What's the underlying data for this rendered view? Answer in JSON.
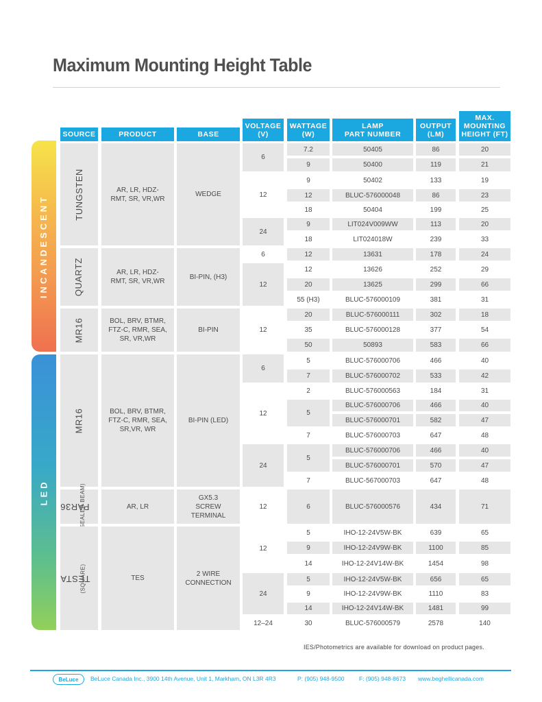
{
  "title": "Maximum Mounting Height Table",
  "headers": {
    "source": "SOURCE",
    "product": "PRODUCT",
    "base": "BASE",
    "voltage": [
      "VOLTAGE",
      "(V)"
    ],
    "wattage": [
      "WATTAGE",
      "(W)"
    ],
    "lamp": [
      "LAMP",
      "PART NUMBER"
    ],
    "output": [
      "OUTPUT",
      "(LM)"
    ],
    "height": [
      "MAX.",
      "MOUNTING",
      "HEIGHT (FT)"
    ]
  },
  "categories": {
    "incandescent": "INCANDESCENT",
    "led": "LED"
  },
  "sources": {
    "tungsten": "TUNGSTEN",
    "quartz": "QUARTZ",
    "mr16_inc": "MR16",
    "mr16_led": "MR16",
    "par36": "PAR36",
    "par36_sub": "(SEALED BEAM)",
    "testa": "TESTA",
    "testa_sub": "(SQUARE)"
  },
  "products": {
    "tungsten": "AR, LR, HDZ-RMT, SR, VR,WR",
    "quartz": "AR, LR, HDZ-RMT, SR, VR,WR",
    "mr16_inc": "BOL, BRV, BTMR, FTZ-C, RMR, SEA, SR, VR,WR",
    "mr16_led": "BOL, BRV, BTMR, FTZ-C, RMR, SEA, SR,VR, WR",
    "par36": "AR, LR",
    "testa": "TES"
  },
  "bases": {
    "tungsten": "WEDGE",
    "quartz": "BI-PIN, (H3)",
    "mr16_inc": "BI-PIN",
    "mr16_led": "BI-PIN (LED)",
    "par36": "GX5.3 SCREW TERMINAL",
    "testa": "2 WIRE CONNECTION"
  },
  "voltages": {
    "t6": "6",
    "t12": "12",
    "t24": "24",
    "q6": "6",
    "q12": "12",
    "mi12": "12",
    "ml6": "6",
    "ml12": "12",
    "ml24": "24",
    "p12": "12",
    "te12": "12",
    "te24": "24",
    "te1224": "12–24"
  },
  "wattages": {
    "ml12_5": "5",
    "ml12_7": "7",
    "ml24_5": "5",
    "ml24_7": "7",
    "par": "6"
  },
  "rows": [
    {
      "w": "7.2",
      "part": "50405",
      "lm": "86",
      "h": "20"
    },
    {
      "w": "9",
      "part": "50400",
      "lm": "119",
      "h": "21"
    },
    {
      "w": "9",
      "part": "50402",
      "lm": "133",
      "h": "19"
    },
    {
      "w": "12",
      "part": "BLUC-576000048",
      "lm": "86",
      "h": "23"
    },
    {
      "w": "18",
      "part": "50404",
      "lm": "199",
      "h": "25"
    },
    {
      "w": "9",
      "part": "LIT024V009WW",
      "lm": "113",
      "h": "20"
    },
    {
      "w": "18",
      "part": "LIT024018W",
      "lm": "239",
      "h": "33"
    },
    {
      "w": "12",
      "part": "13631",
      "lm": "178",
      "h": "24"
    },
    {
      "w": "12",
      "part": "13626",
      "lm": "252",
      "h": "29"
    },
    {
      "w": "20",
      "part": "13625",
      "lm": "299",
      "h": "66"
    },
    {
      "w": "55 (H3)",
      "part": "BLUC-576000109",
      "lm": "381",
      "h": "31"
    },
    {
      "w": "20",
      "part": "BLUC-576000111",
      "lm": "302",
      "h": "18"
    },
    {
      "w": "35",
      "part": "BLUC-576000128",
      "lm": "377",
      "h": "54"
    },
    {
      "w": "50",
      "part": "50893",
      "lm": "583",
      "h": "66"
    },
    {
      "w": "5",
      "part": "BLUC-576000706",
      "lm": "466",
      "h": "40"
    },
    {
      "w": "7",
      "part": "BLUC-576000702",
      "lm": "533",
      "h": "42"
    },
    {
      "w": "2",
      "part": "BLUC-576000563",
      "lm": "184",
      "h": "31"
    },
    {
      "w": "",
      "part": "BLUC-576000706",
      "lm": "466",
      "h": "40"
    },
    {
      "w": "",
      "part": "BLUC-576000701",
      "lm": "582",
      "h": "47"
    },
    {
      "w": "",
      "part": "BLUC-576000703",
      "lm": "647",
      "h": "48"
    },
    {
      "w": "",
      "part": "BLUC-576000706",
      "lm": "466",
      "h": "40"
    },
    {
      "w": "",
      "part": "BLUC-576000701",
      "lm": "570",
      "h": "47"
    },
    {
      "w": "",
      "part": "BLUC-567000703",
      "lm": "647",
      "h": "48"
    },
    {
      "w": "",
      "part": "BLUC-576000576",
      "lm": "434",
      "h": "71"
    },
    {
      "w": "5",
      "part": "IHO-12-24V5W-BK",
      "lm": "639",
      "h": "65"
    },
    {
      "w": "9",
      "part": "IHO-12-24V9W-BK",
      "lm": "1100",
      "h": "85"
    },
    {
      "w": "14",
      "part": "IHO-12-24V14W-BK",
      "lm": "1454",
      "h": "98"
    },
    {
      "w": "5",
      "part": "IHO-12-24V5W-BK",
      "lm": "656",
      "h": "65"
    },
    {
      "w": "9",
      "part": "IHO-12-24V9W-BK",
      "lm": "1110",
      "h": "83"
    },
    {
      "w": "14",
      "part": "IHO-12-24V14W-BK",
      "lm": "1481",
      "h": "99"
    },
    {
      "w": "30",
      "part": "BLUC-576000579",
      "lm": "2578",
      "h": "140"
    }
  ],
  "note": "IES/Photometrics are available for download on product pages.",
  "footer": {
    "logo": "BeLuce",
    "address": "BeLuce Canada Inc., 3900 14th Avenue, Unit 1, Markham, ON L3R 4R3",
    "phone": "P: (905) 948-9500",
    "fax": "F: (905) 948-8673",
    "web": "www.beghellicanada.com"
  },
  "colors": {
    "accent": "#1ba8e0",
    "incandescent_gradient": [
      "#f7e34a",
      "#f39a50",
      "#ef7150"
    ],
    "led_gradient": [
      "#3a97d6",
      "#3ab0c4",
      "#8ecf5a"
    ]
  }
}
